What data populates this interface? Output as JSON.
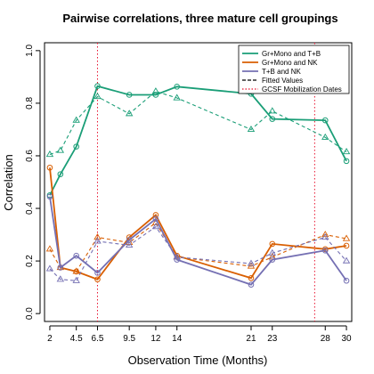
{
  "chart_data": {
    "type": "line",
    "title": "Pairwise correlations, three mature cell groupings",
    "xlabel": "Observation Time (Months)",
    "ylabel": "Correlation",
    "xlim": [
      1.5,
      30.5
    ],
    "ylim": [
      -0.03,
      1.03
    ],
    "x_ticks": [
      2,
      4.5,
      6.5,
      9.5,
      12,
      14,
      21,
      23,
      28,
      30
    ],
    "x_tick_labels": [
      "2",
      "4.5",
      "6.5",
      "9.5",
      "12",
      "14",
      "21",
      "23",
      "28",
      "30"
    ],
    "y_ticks": [
      0.0,
      0.2,
      0.4,
      0.6,
      0.8,
      1.0
    ],
    "y_tick_labels": [
      "0.0",
      "0.2",
      "0.4",
      "0.6",
      "0.8",
      "1.0"
    ],
    "x": [
      2,
      3,
      4.5,
      6.5,
      9.5,
      12,
      14,
      21,
      23,
      28,
      30
    ],
    "series": [
      {
        "name": "Gr+Mono and T+B",
        "color": "#1a9e77",
        "observed": [
          0.45,
          0.53,
          0.635,
          0.865,
          0.832,
          0.832,
          0.863,
          0.836,
          0.74,
          0.735,
          0.58
        ],
        "fitted": [
          0.605,
          0.62,
          0.735,
          0.825,
          0.76,
          0.845,
          0.82,
          0.7,
          0.77,
          0.67,
          0.615
        ]
      },
      {
        "name": "Gr+Mono and NK",
        "color": "#d95f02",
        "observed": [
          0.555,
          0.175,
          0.16,
          0.13,
          0.29,
          0.375,
          0.22,
          0.135,
          0.265,
          0.245,
          0.258
        ],
        "fitted": [
          0.245,
          0.175,
          0.16,
          0.29,
          0.27,
          0.345,
          0.215,
          0.18,
          0.215,
          0.3,
          0.285
        ]
      },
      {
        "name": "T+B and NK",
        "color": "#7570b3",
        "observed": [
          0.445,
          0.175,
          0.22,
          0.155,
          0.28,
          0.36,
          0.205,
          0.11,
          0.205,
          0.24,
          0.125
        ],
        "fitted": [
          0.17,
          0.13,
          0.125,
          0.275,
          0.26,
          0.33,
          0.215,
          0.19,
          0.23,
          0.29,
          0.2
        ]
      }
    ],
    "gcsf_mobilization_dates": [
      6.5,
      27
    ],
    "legend": {
      "position": "top-right",
      "entries": [
        "Gr+Mono and T+B",
        "Gr+Mono and NK",
        "T+B and NK",
        "Fitted Values",
        "GCSF Mobilization Dates"
      ]
    },
    "colors": {
      "fitted_legend": "#000000",
      "gcsf": "#e8112d"
    }
  }
}
